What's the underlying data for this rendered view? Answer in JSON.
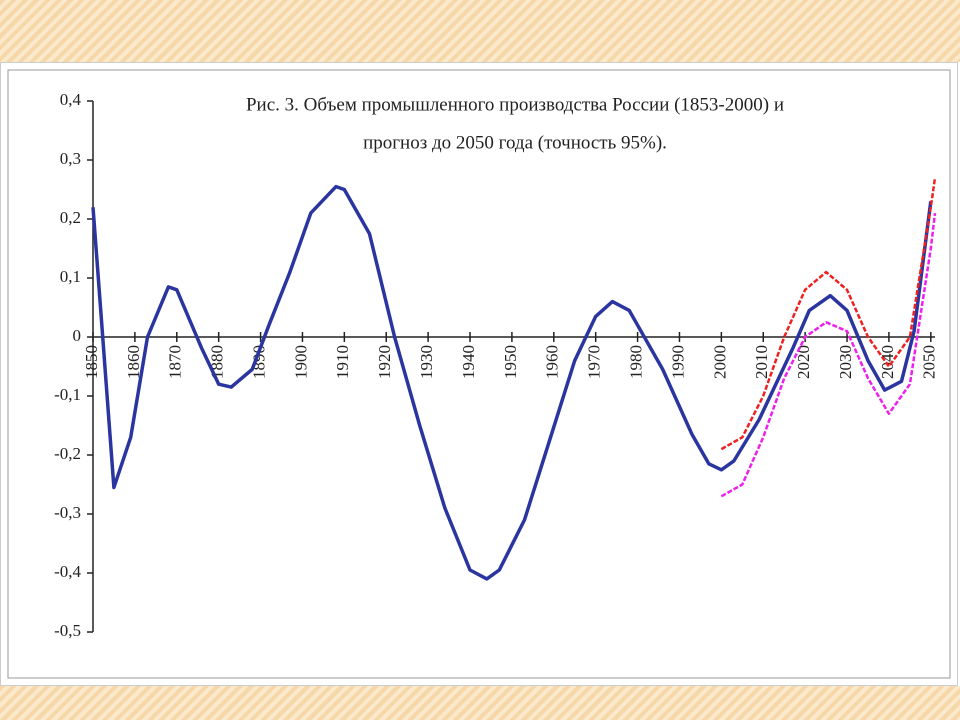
{
  "chart_data": {
    "type": "line",
    "title": "Рис. 3. Объем промышленного производства России (1853-2000) и",
    "subtitle": "прогноз до 2050 года (точность 95%).",
    "xlim": [
      1850,
      2051
    ],
    "ylim": [
      -0.5,
      0.4
    ],
    "xticks": [
      1850,
      1860,
      1870,
      1880,
      1890,
      1900,
      1910,
      1920,
      1930,
      1940,
      1950,
      1960,
      1970,
      1980,
      1990,
      2000,
      2010,
      2020,
      2030,
      2040,
      2050
    ],
    "yticks": [
      {
        "value": -0.5,
        "label": "-0,5"
      },
      {
        "value": -0.4,
        "label": "-0,4"
      },
      {
        "value": -0.3,
        "label": "-0,3"
      },
      {
        "value": -0.2,
        "label": "-0,2"
      },
      {
        "value": -0.1,
        "label": "-0,1"
      },
      {
        "value": 0,
        "label": "0"
      },
      {
        "value": 0.1,
        "label": "0,1"
      },
      {
        "value": 0.2,
        "label": "0,2"
      },
      {
        "value": 0.3,
        "label": "0,3"
      },
      {
        "value": 0.4,
        "label": "0,4"
      }
    ],
    "series": [
      {
        "color": "#2b35a0",
        "width": 3.5,
        "dashed": false,
        "x": [
          1850,
          1852,
          1855,
          1859,
          1863,
          1868,
          1870,
          1876,
          1880,
          1883,
          1888,
          1892,
          1897,
          1902,
          1908,
          1910,
          1916,
          1922,
          1928,
          1934,
          1940,
          1944,
          1947,
          1953,
          1959,
          1965,
          1970,
          1974,
          1978,
          1986,
          1993,
          1997,
          2000,
          2003,
          2009,
          2017,
          2021,
          2026,
          2030,
          2035,
          2039,
          2043,
          2046,
          2050
        ],
        "values": [
          0.22,
          0.03,
          -0.255,
          -0.17,
          0,
          0.085,
          0.08,
          -0.02,
          -0.08,
          -0.085,
          -0.055,
          0.02,
          0.11,
          0.21,
          0.255,
          0.25,
          0.175,
          0,
          -0.15,
          -0.29,
          -0.395,
          -0.41,
          -0.395,
          -0.31,
          -0.175,
          -0.04,
          0.035,
          0.06,
          0.045,
          -0.055,
          -0.165,
          -0.215,
          -0.225,
          -0.21,
          -0.14,
          -0.02,
          0.045,
          0.07,
          0.045,
          -0.04,
          -0.09,
          -0.075,
          0.01,
          0.23
        ]
      },
      {
        "color": "#ee2020",
        "width": 2.5,
        "dashed": true,
        "x": [
          2000,
          2005,
          2010,
          2015,
          2020,
          2025,
          2030,
          2035,
          2040,
          2045,
          2050,
          2051
        ],
        "values": [
          -0.19,
          -0.17,
          -0.1,
          0,
          0.08,
          0.11,
          0.08,
          0,
          -0.05,
          0,
          0.22,
          0.27
        ]
      },
      {
        "color": "#ee20ee",
        "width": 2.5,
        "dashed": true,
        "x": [
          2000,
          2005,
          2010,
          2015,
          2020,
          2025,
          2030,
          2035,
          2040,
          2045,
          2050,
          2051
        ],
        "values": [
          -0.27,
          -0.25,
          -0.17,
          -0.07,
          0,
          0.025,
          0.01,
          -0.07,
          -0.13,
          -0.08,
          0.15,
          0.21
        ]
      }
    ]
  }
}
